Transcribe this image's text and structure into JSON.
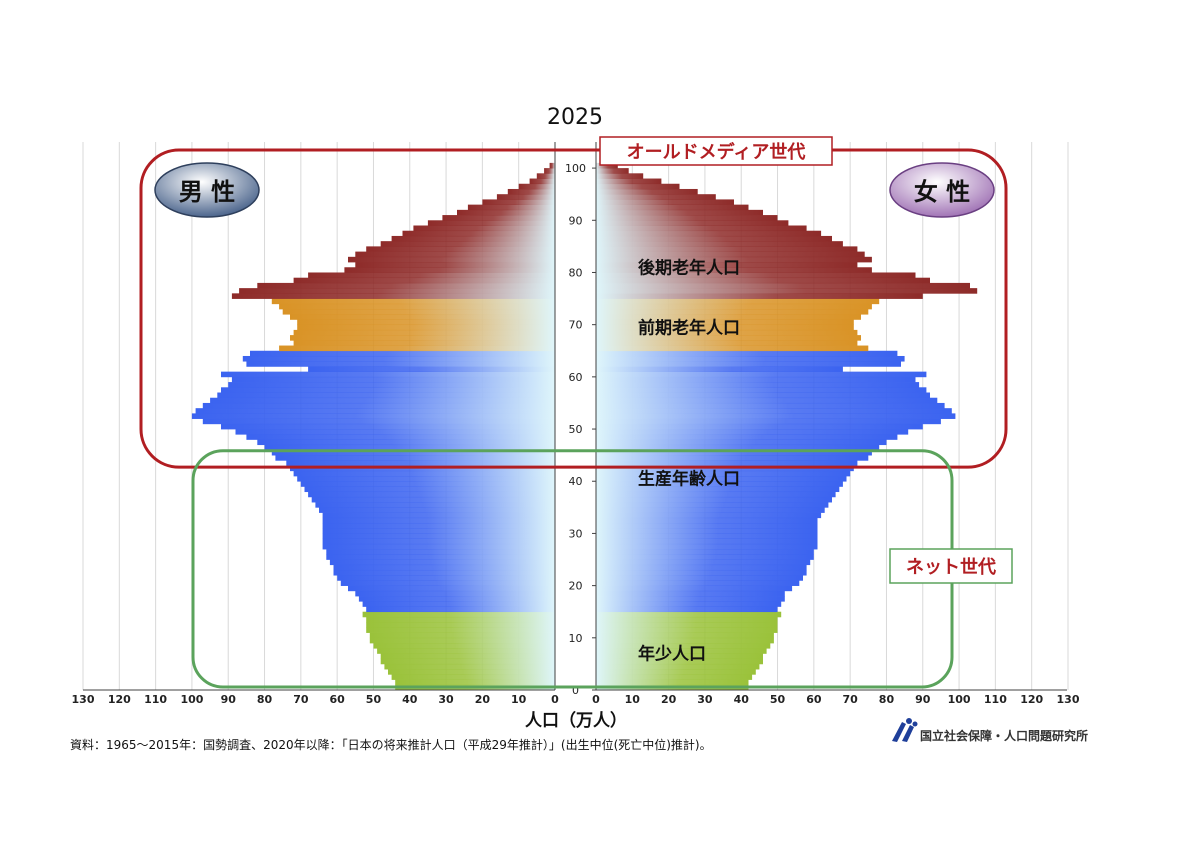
{
  "chart_data": {
    "type": "bar",
    "chart_kind": "population-pyramid",
    "title": "2025",
    "xlabel": "人口（万人）",
    "ylabel": "",
    "xlim": [
      0,
      130
    ],
    "ylim": [
      0,
      105
    ],
    "x_ticks": [
      "130",
      "120",
      "110",
      "100",
      "90",
      "80",
      "70",
      "60",
      "50",
      "40",
      "30",
      "20",
      "10",
      "0",
      "0",
      "10",
      "20",
      "30",
      "40",
      "50",
      "60",
      "70",
      "80",
      "90",
      "100",
      "110",
      "120",
      "130"
    ],
    "y_ticks": [
      "0",
      "10",
      "20",
      "30",
      "40",
      "50",
      "60",
      "70",
      "80",
      "90",
      "100"
    ],
    "grid": true,
    "sex_labels": {
      "male": "男 性",
      "female": "女 性"
    },
    "age_group_labels": [
      {
        "text": "後期老年人口",
        "age": 81
      },
      {
        "text": "前期老年人口",
        "age": 69.5
      },
      {
        "text": "生産年齢人口",
        "age": 40.5
      },
      {
        "text": "年少人口",
        "age": 7
      }
    ],
    "generation_labels": {
      "old_media": "オールドメディア世代",
      "net": "ネット世代"
    },
    "generation_ranges": {
      "old_media": [
        45,
        105
      ],
      "net": [
        0,
        47
      ]
    },
    "source_note": "資料：1965～2015年：国勢調査、2020年以降：「日本の将来推計人口（平成29年推計）」(出生中位(死亡中位)推計)。",
    "org_name": "国立社会保障・人口問題研究所",
    "colors": {
      "child": "#9ac23a",
      "working": "#3b63f0",
      "young_old": "#d99326",
      "old_old": "#8e2b29",
      "pale": "#dff6fb",
      "old_media_frame": "#b11e22",
      "net_frame": "#5ba35c",
      "male_badge": "#3f5a84",
      "female_badge": "#9a6ab0"
    },
    "series": [
      {
        "name": "男 性",
        "side": "left",
        "values": [
          44,
          44,
          45,
          46,
          47,
          48,
          48,
          49,
          50,
          51,
          51,
          52,
          52,
          52,
          53,
          52,
          53,
          54,
          55,
          57,
          59,
          60,
          61,
          61,
          62,
          63,
          63,
          64,
          64,
          64,
          64,
          64,
          64,
          64,
          65,
          66,
          67,
          68,
          69,
          70,
          71,
          72,
          73,
          74,
          77,
          78,
          80,
          82,
          85,
          88,
          92,
          97,
          100,
          99,
          97,
          95,
          93,
          92,
          90,
          89,
          92,
          68,
          85,
          86,
          84,
          76,
          72,
          73,
          72,
          71,
          71,
          73,
          75,
          76,
          78,
          89,
          87,
          82,
          72,
          68,
          58,
          55,
          57,
          55,
          52,
          48,
          45,
          42,
          39,
          35,
          31,
          27,
          24,
          20,
          16,
          13,
          10,
          7,
          5,
          3,
          1.5
        ]
      },
      {
        "name": "女 性",
        "side": "right",
        "values": [
          42,
          42,
          43,
          44,
          45,
          46,
          46,
          47,
          48,
          49,
          49,
          50,
          50,
          50,
          51,
          50,
          51,
          52,
          52,
          54,
          56,
          57,
          58,
          58,
          59,
          60,
          60,
          61,
          61,
          61,
          61,
          61,
          61,
          62,
          63,
          64,
          65,
          66,
          67,
          68,
          69,
          70,
          71,
          72,
          75,
          76,
          78,
          80,
          83,
          86,
          90,
          95,
          99,
          98,
          96,
          94,
          92,
          91,
          89,
          88,
          91,
          68,
          84,
          85,
          83,
          75,
          72,
          73,
          72,
          71,
          71,
          73,
          75,
          76,
          78,
          90,
          105,
          103,
          92,
          88,
          76,
          72,
          76,
          74,
          72,
          68,
          65,
          62,
          58,
          53,
          50,
          46,
          42,
          38,
          33,
          28,
          23,
          18,
          13,
          9,
          6
        ]
      }
    ]
  }
}
